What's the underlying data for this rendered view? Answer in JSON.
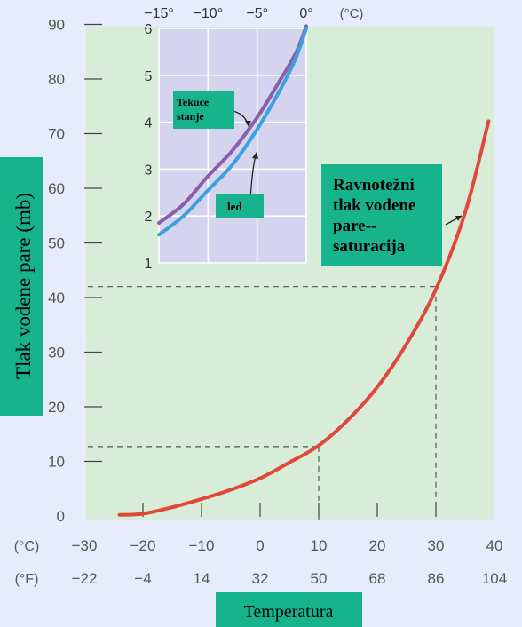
{
  "colors": {
    "page_bg": "#e6ecfb",
    "plot_bg": "#d8edd8",
    "inset_bg": "#d5d4ee",
    "main_curve": "#e2483a",
    "inset_liquid": "#8b5ea9",
    "inset_ice": "#3ea1dd",
    "label_box": "#16b38d",
    "axis_text": "#555555",
    "dashed": "#555555"
  },
  "chart_data": [
    {
      "type": "line",
      "name": "main",
      "ylabel": "Tlak vodene pare (mb)",
      "xlabel": "Temperatura",
      "x_unit_c": "(°C)",
      "x_unit_f": "(°F)",
      "xlim": [
        -30,
        40
      ],
      "ylim": [
        0,
        90
      ],
      "x_ticks_c": [
        "−30",
        "−20",
        "−10",
        "0",
        "10",
        "20",
        "30",
        "40"
      ],
      "x_ticks_f": [
        "−22",
        "−4",
        "14",
        "32",
        "50",
        "68",
        "86",
        "104"
      ],
      "x_tick_values": [
        -30,
        -20,
        -10,
        0,
        10,
        20,
        30,
        40
      ],
      "y_ticks": [
        "0",
        "10",
        "20",
        "30",
        "40",
        "50",
        "60",
        "70",
        "80",
        "90"
      ],
      "y_tick_values": [
        0,
        10,
        20,
        30,
        40,
        50,
        60,
        70,
        80,
        90
      ],
      "grid": false,
      "series": [
        {
          "name": "Ravnotežni tlak vodene pare--saturacija",
          "x": [
            -24,
            -20,
            -15,
            -10,
            -5,
            0,
            5,
            10,
            15,
            20,
            25,
            30,
            35,
            39
          ],
          "y": [
            0.2,
            0.4,
            1.6,
            3.1,
            4.8,
            6.9,
            9.8,
            12.9,
            17.6,
            23.6,
            31.5,
            41.5,
            55.6,
            72.3
          ]
        }
      ],
      "reference_lines": [
        {
          "x": 10,
          "y": 12.7
        },
        {
          "x": 30,
          "y": 42
        }
      ],
      "annotation": "Ravnotežni tlak vodene pare--saturacija"
    },
    {
      "type": "line",
      "name": "inset",
      "x_unit": "(°C)",
      "xlim": [
        -15,
        0
      ],
      "ylim": [
        1,
        6
      ],
      "x_ticks": [
        "−15°",
        "−10°",
        "−5°",
        "0°"
      ],
      "x_tick_values": [
        -15,
        -10,
        -5,
        0
      ],
      "y_ticks": [
        "1",
        "2",
        "3",
        "4",
        "5",
        "6"
      ],
      "y_tick_values": [
        1,
        2,
        3,
        4,
        5,
        6
      ],
      "grid": true,
      "series": [
        {
          "name": "Tekuće stanje",
          "x": [
            -15,
            -12.5,
            -10,
            -7.5,
            -5,
            -2.5,
            -1,
            0
          ],
          "y": [
            1.85,
            2.25,
            2.85,
            3.4,
            4.1,
            4.95,
            5.5,
            6.05
          ]
        },
        {
          "name": "led",
          "x": [
            -15,
            -12.5,
            -10,
            -7.5,
            -5,
            -2.5,
            -1,
            0
          ],
          "y": [
            1.6,
            2.0,
            2.55,
            3.1,
            3.85,
            4.75,
            5.4,
            6.0
          ]
        }
      ],
      "annotations": [
        "Tekuće stanje",
        "led"
      ]
    }
  ],
  "labels": {
    "ylabel": "Tlak vodene pare (mb)",
    "xlabel": "Temperatura",
    "curve_label_lines": [
      "Ravnotežni",
      "tlak vodene",
      "pare--",
      "saturacija"
    ],
    "inset_liquid_lines": [
      "Tekuće",
      "stanje"
    ],
    "inset_ice": "led"
  }
}
